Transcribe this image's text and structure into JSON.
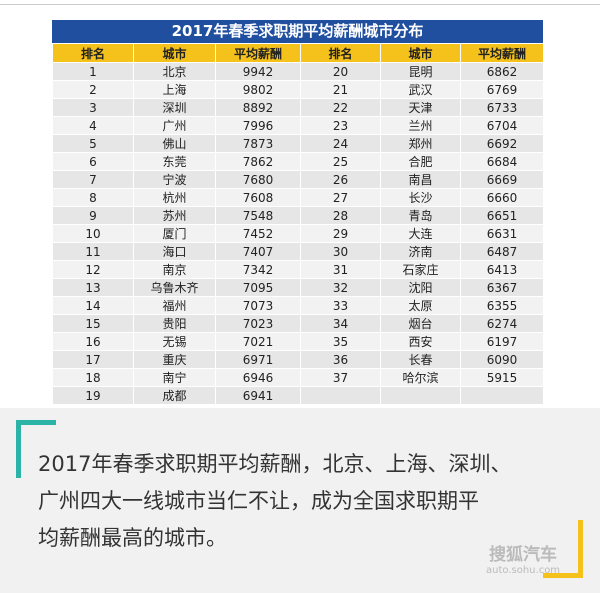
{
  "table": {
    "title": "2017年春季求职期平均薪酬城市分布",
    "header": [
      "排名",
      "城市",
      "平均薪酬",
      "排名",
      "城市",
      "平均薪酬"
    ],
    "rows": [
      [
        1,
        "北京",
        9942,
        20,
        "昆明",
        6862
      ],
      [
        2,
        "上海",
        9802,
        21,
        "武汉",
        6769
      ],
      [
        3,
        "深圳",
        8892,
        22,
        "天津",
        6733
      ],
      [
        4,
        "广州",
        7996,
        23,
        "兰州",
        6704
      ],
      [
        5,
        "佛山",
        7873,
        24,
        "郑州",
        6692
      ],
      [
        6,
        "东莞",
        7862,
        25,
        "合肥",
        6684
      ],
      [
        7,
        "宁波",
        7680,
        26,
        "南昌",
        6669
      ],
      [
        8,
        "杭州",
        7608,
        27,
        "长沙",
        6660
      ],
      [
        9,
        "苏州",
        7548,
        28,
        "青岛",
        6651
      ],
      [
        10,
        "厦门",
        7452,
        29,
        "大连",
        6631
      ],
      [
        11,
        "海口",
        7407,
        30,
        "济南",
        6487
      ],
      [
        12,
        "南京",
        7342,
        31,
        "石家庄",
        6413
      ],
      [
        13,
        "乌鲁木齐",
        7095,
        32,
        "沈阳",
        6367
      ],
      [
        14,
        "福州",
        7073,
        33,
        "太原",
        6355
      ],
      [
        15,
        "贵阳",
        7023,
        34,
        "烟台",
        6274
      ],
      [
        16,
        "无锡",
        7021,
        35,
        "西安",
        6197
      ],
      [
        17,
        "重庆",
        6971,
        36,
        "长春",
        6090
      ],
      [
        18,
        "南宁",
        6946,
        37,
        "哈尔滨",
        5915
      ],
      [
        19,
        "成都",
        6941
      ]
    ]
  },
  "caption": {
    "lines": [
      "2017年春季求职期平均薪酬，北京、上海、深圳、",
      "广州四大一线城市当仁不让，成为全国求职期平",
      "均薪酬最高的城市。"
    ]
  },
  "watermark": {
    "brand": "搜狐汽车",
    "url": "auto.sohu.com"
  }
}
